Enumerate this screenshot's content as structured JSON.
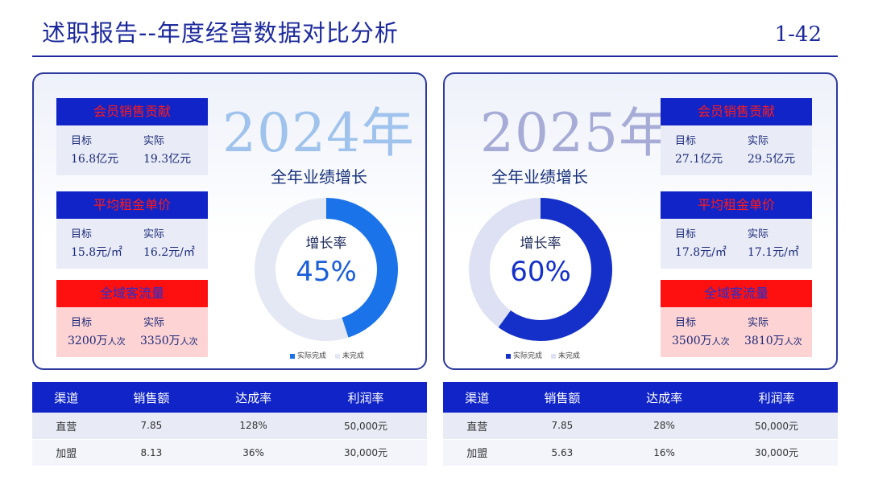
{
  "header": {
    "title": "述职报告--年度经营数据对比分析",
    "page_number": "1-42"
  },
  "left_panel": {
    "year": "2024年",
    "subtitle": "全年业绩增长",
    "donut": {
      "label": "增长率",
      "value_text": "45%",
      "value": 45,
      "color": "#1a73e8",
      "rest_color": "#e4e8f5"
    },
    "legend": {
      "done": "实际完成",
      "undone": "未完成"
    },
    "cards": [
      {
        "title": "会员销售贡献",
        "target_label": "目标",
        "actual_label": "实际",
        "target": "16.8亿元",
        "actual": "19.3亿元"
      },
      {
        "title": "平均租金单价",
        "target_label": "目标",
        "actual_label": "实际",
        "target": "15.8元/㎡",
        "actual": "16.2元/㎡"
      },
      {
        "title": "全域客流量",
        "target_label": "目标",
        "actual_label": "实际",
        "target": "3200万",
        "target_unit": "人次",
        "actual": "3350万",
        "actual_unit": "人次"
      }
    ]
  },
  "right_panel": {
    "year": "2025年",
    "subtitle": "全年业绩增长",
    "donut": {
      "label": "增长率",
      "value_text": "60%",
      "value": 60,
      "color": "#1530c8",
      "rest_color": "#dde1f3"
    },
    "legend": {
      "done": "实际完成",
      "undone": "未完成"
    },
    "cards": [
      {
        "title": "会员销售贡献",
        "target_label": "目标",
        "actual_label": "实际",
        "target": "27.1亿元",
        "actual": "29.5亿元"
      },
      {
        "title": "平均租金单价",
        "target_label": "目标",
        "actual_label": "实际",
        "target": "17.8元/㎡",
        "actual": "17.1元/㎡"
      },
      {
        "title": "全域客流量",
        "target_label": "目标",
        "actual_label": "实际",
        "target": "3500万",
        "target_unit": "人次",
        "actual": "3810万",
        "actual_unit": "人次"
      }
    ]
  },
  "left_table": {
    "headers": [
      "渠道",
      "销售额",
      "达成率",
      "利润率"
    ],
    "rows": [
      [
        "直营",
        "7.85",
        "128%",
        "50,000元"
      ],
      [
        "加盟",
        "8.13",
        "36%",
        "30,000元"
      ]
    ]
  },
  "right_table": {
    "headers": [
      "渠道",
      "销售额",
      "达成率",
      "利润率"
    ],
    "rows": [
      [
        "直营",
        "7.85",
        "28%",
        "50,000元"
      ],
      [
        "加盟",
        "5.63",
        "16%",
        "30,000元"
      ]
    ]
  },
  "colors": {
    "brand_blue": "#1024c8",
    "accent_red": "#ff1010",
    "title_blue": "#1d2a9c"
  }
}
